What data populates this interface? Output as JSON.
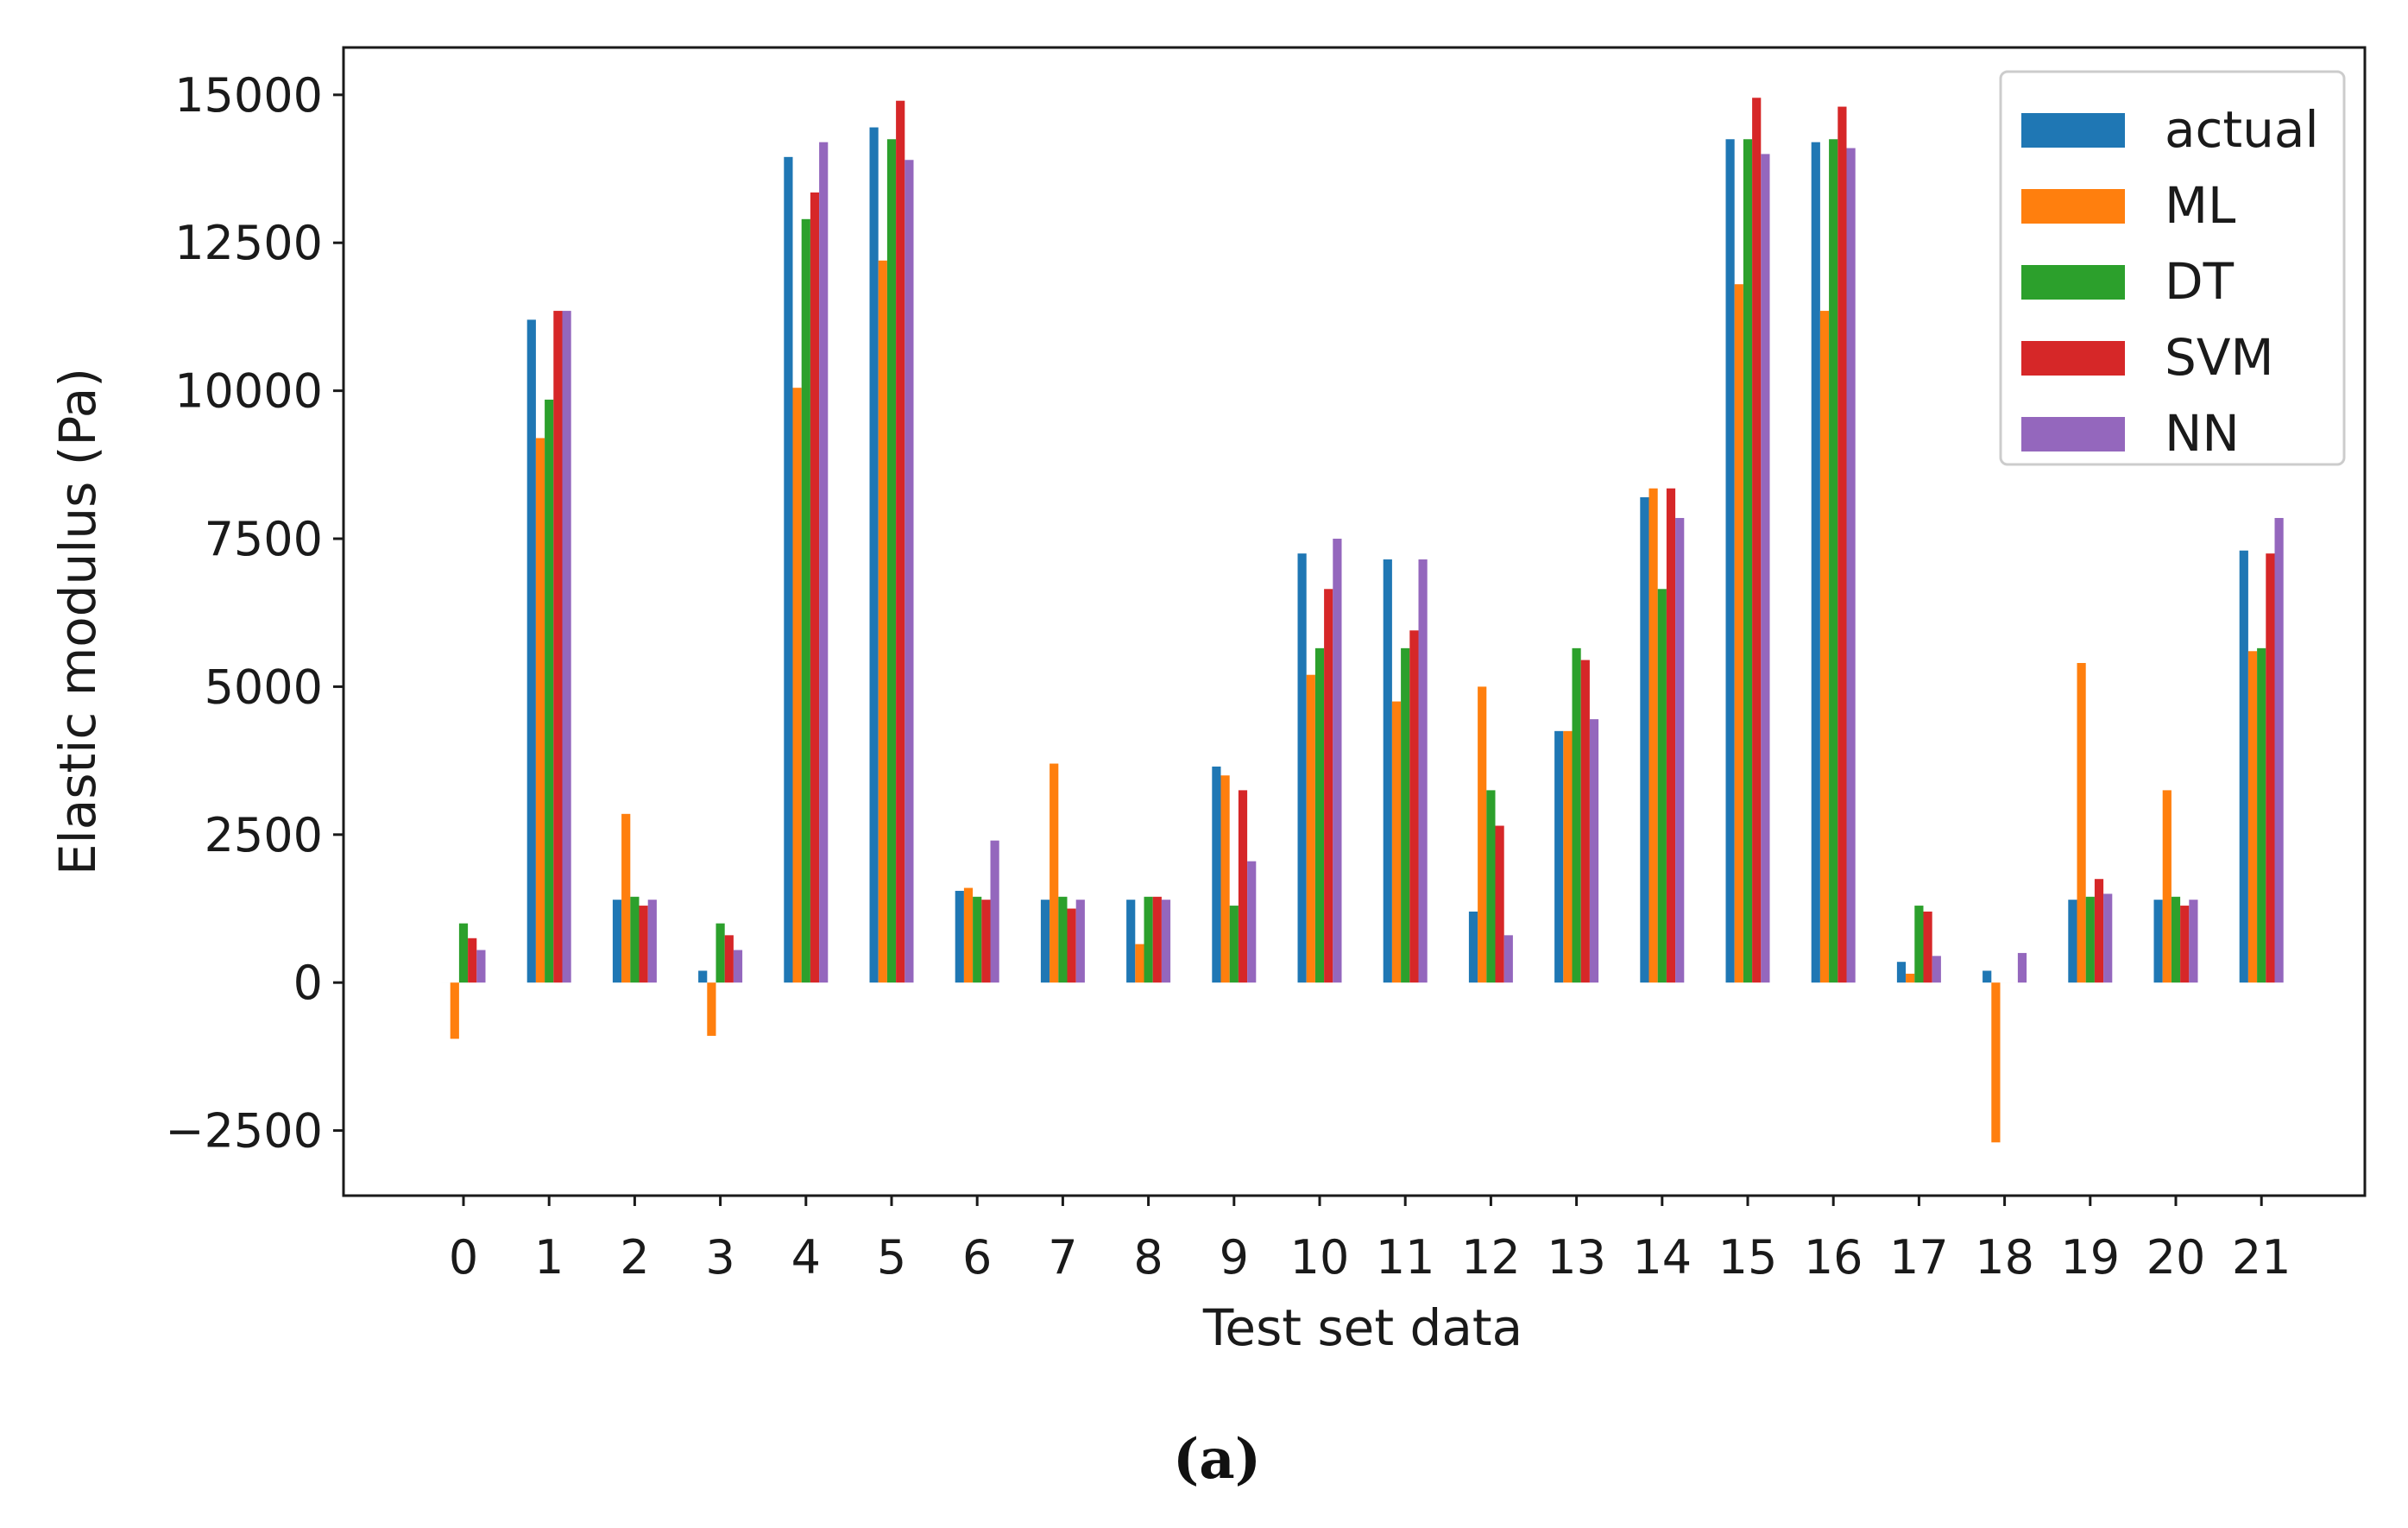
{
  "chart_data": {
    "type": "bar",
    "xlabel": "Test set data",
    "ylabel": "Elastic modulus (Pa)",
    "caption": "(a)",
    "ylim": [
      -3600,
      15800
    ],
    "yticks": [
      -2500,
      0,
      2500,
      5000,
      7500,
      10000,
      12500,
      15000
    ],
    "grid": false,
    "legend_position": "top-right",
    "categories": [
      "0",
      "1",
      "2",
      "3",
      "4",
      "5",
      "6",
      "7",
      "8",
      "9",
      "10",
      "11",
      "12",
      "13",
      "14",
      "15",
      "16",
      "17",
      "18",
      "19",
      "20",
      "21"
    ],
    "series": [
      {
        "name": "actual",
        "color": "#1f77b4",
        "values": [
          0,
          11200,
          1400,
          200,
          13950,
          14450,
          1550,
          1400,
          1400,
          3650,
          7250,
          7150,
          1200,
          4250,
          8200,
          14250,
          14200,
          350,
          200,
          1400,
          1400,
          7300
        ]
      },
      {
        "name": "ML",
        "color": "#ff7f0e",
        "values": [
          -950,
          9200,
          2850,
          -900,
          10050,
          12200,
          1600,
          3700,
          650,
          3500,
          5200,
          4750,
          5000,
          4250,
          8350,
          11800,
          11350,
          150,
          -2700,
          5400,
          3250,
          5600
        ]
      },
      {
        "name": "DT",
        "color": "#2ca02c",
        "values": [
          1000,
          9850,
          1450,
          1000,
          12900,
          14250,
          1450,
          1450,
          1450,
          1300,
          5650,
          5650,
          3250,
          5650,
          6650,
          14250,
          14250,
          1300,
          0,
          1450,
          1450,
          5650
        ]
      },
      {
        "name": "SVM",
        "color": "#d62728",
        "values": [
          750,
          11350,
          1300,
          800,
          13350,
          14900,
          1400,
          1250,
          1450,
          3250,
          6650,
          5950,
          2650,
          5450,
          8350,
          14950,
          14800,
          1200,
          0,
          1750,
          1300,
          7250
        ]
      },
      {
        "name": "NN",
        "color": "#9467bd",
        "values": [
          550,
          11350,
          1400,
          550,
          14200,
          13900,
          2400,
          1400,
          1400,
          2050,
          7500,
          7150,
          800,
          4450,
          7850,
          14000,
          14100,
          450,
          500,
          1500,
          1400,
          7850
        ]
      }
    ]
  }
}
